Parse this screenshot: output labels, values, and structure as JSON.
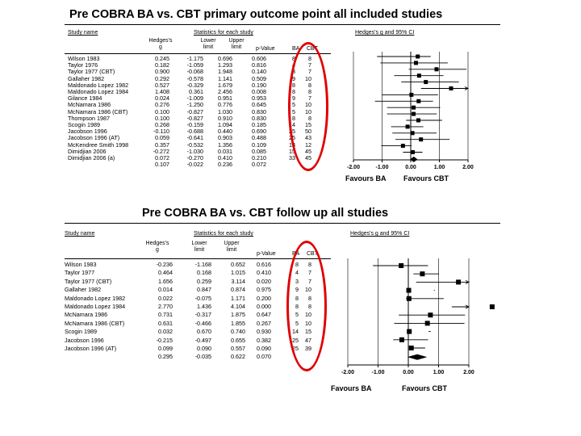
{
  "colors": {
    "accent_red": "#e00000",
    "ink": "#000000"
  },
  "panel1": {
    "title": "Pre COBRA BA vs. CBT primary outcome point all included studies",
    "headers": {
      "study_name": "Study name",
      "stats_group": "Statistics for each study",
      "forest_group": "Hedges's g and 95% CI",
      "hedges": "Hedges's g",
      "lower": "Lower limit",
      "upper": "Upper limit",
      "pvalue": "p-Value",
      "ba": "BA",
      "cbt": "CBT"
    },
    "rows": [
      {
        "study": "Wilson 1983",
        "g": "0.245",
        "lower": "-1.175",
        "upper": "0.696",
        "p": "0.606",
        "ba": "8",
        "cbt": "8"
      },
      {
        "study": "Taylor 1976",
        "g": "0.182",
        "lower": "-1.059",
        "upper": "1.293",
        "p": "0.816",
        "ba": "4",
        "cbt": "7"
      },
      {
        "study": "Taylor 1977 (CBT)",
        "g": "0.900",
        "lower": "-0.068",
        "upper": "1.948",
        "p": "0.140",
        "ba": "3",
        "cbt": "7"
      },
      {
        "study": "Gallaher 1982",
        "g": "0.292",
        "lower": "-0.578",
        "upper": "1.141",
        "p": "0.509",
        "ba": "9",
        "cbt": "10"
      },
      {
        "study": "Maldonado Lopez 1982",
        "g": "0.527",
        "lower": "-0.329",
        "upper": "1.679",
        "p": "0.190",
        "ba": "8",
        "cbt": "8"
      },
      {
        "study": "Maldonado Lopez 1984",
        "g": "1.408",
        "lower": "0.361",
        "upper": "2.456",
        "p": "0.008",
        "ba": "8",
        "cbt": "8"
      },
      {
        "study": "Gilance 1984",
        "g": "0.024",
        "lower": "-1.009",
        "upper": "0.951",
        "p": "0.953",
        "ba": "9",
        "cbt": "7"
      },
      {
        "study": "McNamara 1986",
        "g": "0.276",
        "lower": "-1.250",
        "upper": "0.776",
        "p": "0.645",
        "ba": "5",
        "cbt": "10"
      },
      {
        "study": "McNamara 1986 (CBT)",
        "g": "0.100",
        "lower": "-0.827",
        "upper": "1.030",
        "p": "0.830",
        "ba": "5",
        "cbt": "10"
      },
      {
        "study": "Thompson 1987",
        "g": "0.100",
        "lower": "-0.827",
        "upper": "0.910",
        "p": "0.830",
        "ba": "8",
        "cbt": "8"
      },
      {
        "study": "Scogin 1989",
        "g": "0.268",
        "lower": "-0.159",
        "upper": "1.094",
        "p": "0.185",
        "ba": "14",
        "cbt": "15"
      },
      {
        "study": "Jacobson 1996",
        "g": "-0.110",
        "lower": "-0.688",
        "upper": "0.440",
        "p": "0.690",
        "ba": "25",
        "cbt": "50"
      },
      {
        "study": "Jacobson 1996 (AT)",
        "g": "0.059",
        "lower": "-0.641",
        "upper": "0.903",
        "p": "0.488",
        "ba": "25",
        "cbt": "43"
      },
      {
        "study": "McKendree Smith 1998",
        "g": "0.357",
        "lower": "-0.532",
        "upper": "1.356",
        "p": "0.109",
        "ba": "13",
        "cbt": "12"
      },
      {
        "study": "Dimidjian 2006",
        "g": "-0.272",
        "lower": "-1.030",
        "upper": "0.031",
        "p": "0.085",
        "ba": "15",
        "cbt": "45"
      },
      {
        "study": "Dimidjian 2006 (a)",
        "g": "0.072",
        "lower": "-0.270",
        "upper": "0.410",
        "p": "0.210",
        "ba": "33",
        "cbt": "45"
      },
      {
        "study": "",
        "g": "0.107",
        "lower": "-0.022",
        "upper": "0.236",
        "p": "0.072",
        "ba": "",
        "cbt": ""
      }
    ],
    "axis_ticks": [
      "-2.00",
      "-1.00",
      "0.00",
      "1.00",
      "2.00"
    ],
    "favours_left": "Favours BA",
    "favours_right": "Favours CBT"
  },
  "panel2": {
    "title": "Pre COBRA BA vs. CBT follow up all studies",
    "headers": {
      "study_name": "Study name",
      "stats_group": "Statistics for each study",
      "forest_group": "Hedges's g and 95% CI",
      "hedges": "Hedges's g",
      "lower": "Lower limit",
      "upper": "Upper limit",
      "pvalue": "p-Value",
      "ba": "BA",
      "cbt": "CBT"
    },
    "rows": [
      {
        "study": "Wilson 1983",
        "g": "-0.236",
        "lower": "-1.168",
        "upper": "0.652",
        "p": "0.616",
        "ba": "8",
        "cbt": "8"
      },
      {
        "study": "Taylor 1977",
        "g": "0.464",
        "lower": "0.168",
        "upper": "1.015",
        "p": "0.410",
        "ba": "4",
        "cbt": "7"
      },
      {
        "study": "Taylor 1977 (CBT)",
        "g": "1.656",
        "lower": "0.259",
        "upper": "3.114",
        "p": "0.020",
        "ba": "3",
        "cbt": "7"
      },
      {
        "study": "Gallaher 1982",
        "g": "0.014",
        "lower": "0.847",
        "upper": "0.874",
        "p": "0.975",
        "ba": "9",
        "cbt": "10"
      },
      {
        "study": "Maldonado Lopez 1982",
        "g": "0.022",
        "lower": "-0.075",
        "upper": "1.171",
        "p": "0.200",
        "ba": "8",
        "cbt": "8"
      },
      {
        "study": "Maldonado Lopez 1984",
        "g": "2.770",
        "lower": "1.436",
        "upper": "4.104",
        "p": "0.000",
        "ba": "8",
        "cbt": "8"
      },
      {
        "study": "McNamara 1986",
        "g": "0.731",
        "lower": "-0.317",
        "upper": "1.875",
        "p": "0.647",
        "ba": "5",
        "cbt": "10"
      },
      {
        "study": "McNamara 1986 (CBT)",
        "g": "0.631",
        "lower": "-0.466",
        "upper": "1.855",
        "p": "0.267",
        "ba": "5",
        "cbt": "10"
      },
      {
        "study": "Scogin 1989",
        "g": "0.032",
        "lower": "0.670",
        "upper": "0.740",
        "p": "0.930",
        "ba": "14",
        "cbt": "15"
      },
      {
        "study": "Jacobson 1996",
        "g": "-0.215",
        "lower": "-0.497",
        "upper": "0.655",
        "p": "0.382",
        "ba": "25",
        "cbt": "47"
      },
      {
        "study": "Jacobson 1996 (AT)",
        "g": "0.099",
        "lower": "0.090",
        "upper": "0.557",
        "p": "0.090",
        "ba": "25",
        "cbt": "39"
      },
      {
        "study": "",
        "g": "0.295",
        "lower": "-0.035",
        "upper": "0.622",
        "p": "0.070",
        "ba": "",
        "cbt": ""
      }
    ],
    "axis_ticks": [
      "-2.00",
      "-1.00",
      "0.00",
      "1.00",
      "2.00"
    ],
    "favours_left": "Favours BA",
    "favours_right": "Favours CBT"
  },
  "chart_data": [
    {
      "type": "scatter",
      "title": "Pre COBRA BA vs. CBT primary outcome point all included studies",
      "xlabel": "Hedges's g and 95% CI",
      "xlim": [
        -2,
        2
      ],
      "xticks": [
        -2,
        -1,
        0,
        1,
        2
      ],
      "grid": false,
      "categories": [
        "Wilson 1983",
        "Taylor 1976",
        "Taylor 1977 (CBT)",
        "Gallaher 1982",
        "Maldonado Lopez 1982",
        "Maldonado Lopez 1984",
        "Gilance 1984",
        "McNamara 1986",
        "McNamara 1986 (CBT)",
        "Thompson 1987",
        "Scogin 1989",
        "Jacobson 1996",
        "Jacobson 1996 (AT)",
        "McKendree Smith 1998",
        "Dimidjian 2006",
        "Dimidjian 2006 (a)"
      ],
      "series": [
        {
          "name": "Hedges's g",
          "values": [
            0.245,
            0.182,
            0.9,
            0.292,
            0.527,
            1.408,
            0.024,
            0.276,
            0.1,
            0.1,
            0.268,
            -0.11,
            0.059,
            0.357,
            -0.272,
            0.072
          ]
        },
        {
          "name": "Lower limit",
          "values": [
            -1.175,
            -1.059,
            -0.068,
            -0.578,
            -0.329,
            0.361,
            -1.009,
            -1.25,
            -0.827,
            -0.827,
            -0.159,
            -0.688,
            -0.641,
            -0.532,
            -1.03,
            -0.27
          ]
        },
        {
          "name": "Upper limit",
          "values": [
            0.696,
            1.293,
            1.948,
            1.141,
            1.679,
            2.456,
            0.951,
            0.776,
            1.03,
            0.91,
            1.094,
            0.44,
            0.903,
            1.356,
            0.031,
            0.41
          ]
        }
      ],
      "summary": {
        "g": 0.107,
        "lower": -0.022,
        "upper": 0.236
      },
      "annotations": [
        "Favours BA",
        "Favours CBT"
      ]
    },
    {
      "type": "scatter",
      "title": "Pre COBRA BA vs. CBT follow up all studies",
      "xlabel": "Hedges's g and 95% CI",
      "xlim": [
        -2,
        2
      ],
      "xticks": [
        -2,
        -1,
        0,
        1,
        2
      ],
      "grid": false,
      "categories": [
        "Wilson 1983",
        "Taylor 1977",
        "Taylor 1977 (CBT)",
        "Gallaher 1982",
        "Maldonado Lopez 1982",
        "Maldonado Lopez 1984",
        "McNamara 1986",
        "McNamara 1986 (CBT)",
        "Scogin 1989",
        "Jacobson 1996",
        "Jacobson 1996 (AT)"
      ],
      "series": [
        {
          "name": "Hedges's g",
          "values": [
            -0.236,
            0.464,
            1.656,
            0.014,
            0.022,
            2.77,
            0.731,
            0.631,
            0.032,
            -0.215,
            0.099
          ]
        },
        {
          "name": "Lower limit",
          "values": [
            -1.168,
            0.168,
            0.259,
            0.847,
            -0.075,
            1.436,
            -0.317,
            -0.466,
            0.67,
            -0.497,
            0.09
          ]
        },
        {
          "name": "Upper limit",
          "values": [
            0.652,
            1.015,
            3.114,
            0.874,
            1.171,
            4.104,
            1.875,
            1.855,
            0.74,
            0.655,
            0.557
          ]
        }
      ],
      "summary": {
        "g": 0.295,
        "lower": -0.035,
        "upper": 0.622
      },
      "annotations": [
        "Favours BA",
        "Favours CBT"
      ]
    }
  ]
}
